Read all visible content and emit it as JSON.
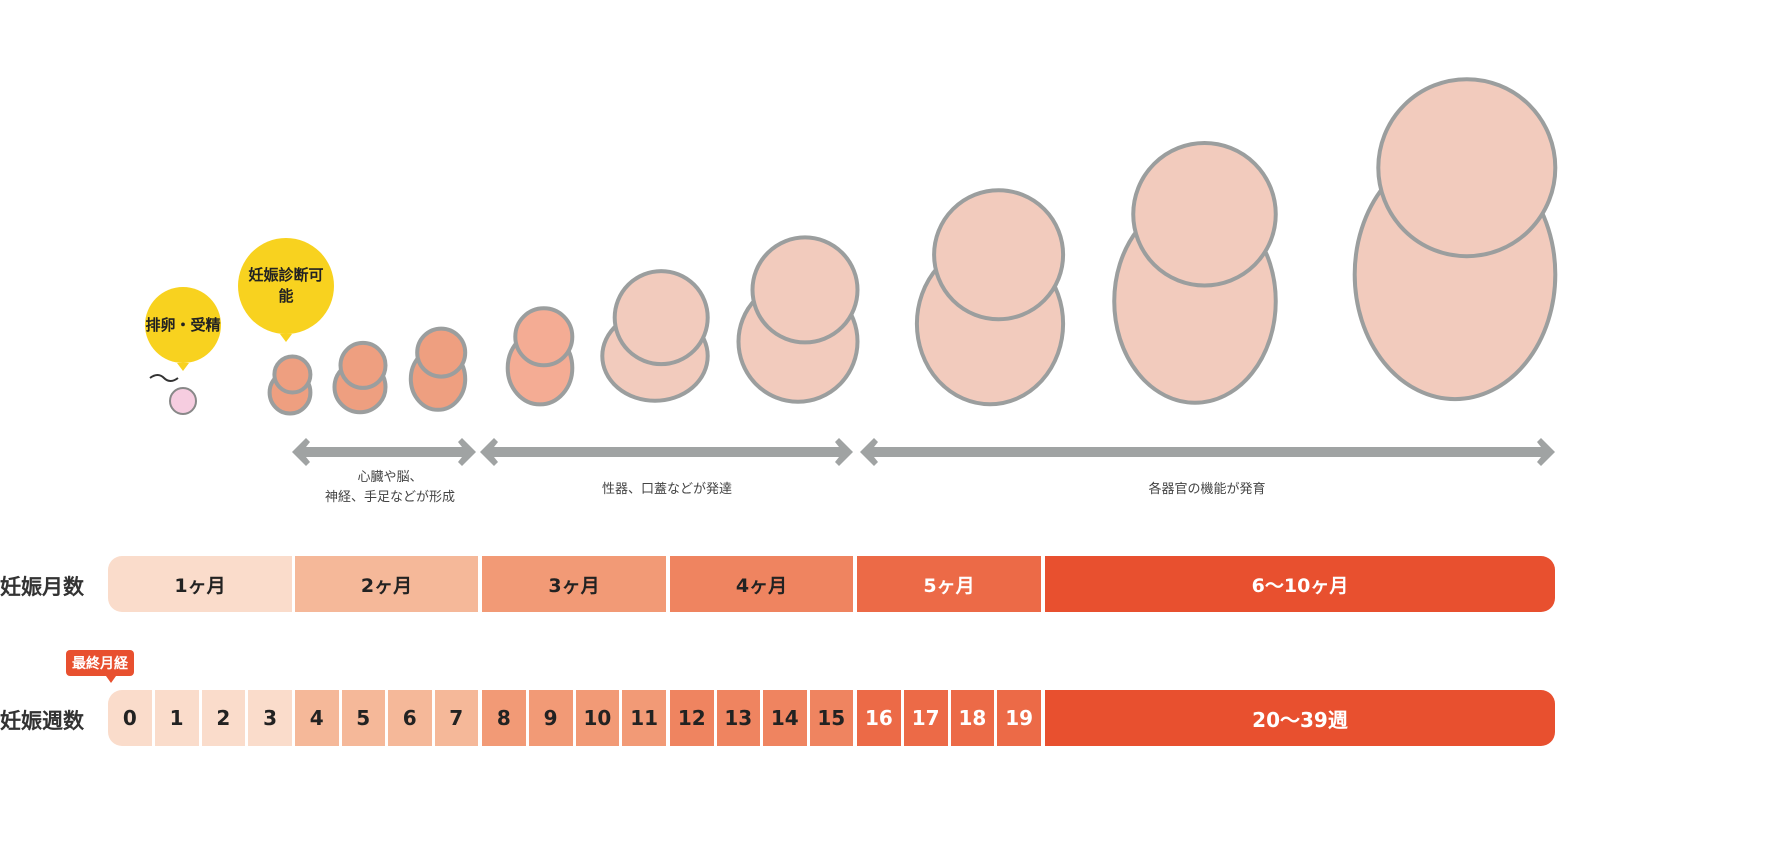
{
  "bubbles": {
    "ovulation": "排卵・受精",
    "diagnosis": "妊娠診断可能"
  },
  "stages": [
    {
      "caption_line1": "心臓や脳、",
      "caption_line2": "神経、手足などが形成"
    },
    {
      "caption": "性器、口蓋などが発達"
    },
    {
      "caption": "各器官の機能が発育"
    }
  ],
  "months_row": {
    "label": "妊娠月数",
    "items": [
      "1ヶ月",
      "2ヶ月",
      "3ヶ月",
      "4ヶ月",
      "5ヶ月",
      "6〜10ヶ月"
    ]
  },
  "weeks_row": {
    "label": "妊娠週数",
    "last_period_tag": "最終月経",
    "items": [
      "0",
      "1",
      "2",
      "3",
      "4",
      "5",
      "6",
      "7",
      "8",
      "9",
      "10",
      "11",
      "12",
      "13",
      "14",
      "15",
      "16",
      "17",
      "18",
      "19"
    ],
    "final": "20〜39週"
  },
  "colors": {
    "m1": "#fadccb",
    "m2": "#f5b899",
    "m3": "#f29a76",
    "m4": "#ef8460",
    "m5": "#ec6a47",
    "m6": "#e8502f",
    "bubble": "#f8d21f",
    "arrow": "#a0a3a3"
  }
}
